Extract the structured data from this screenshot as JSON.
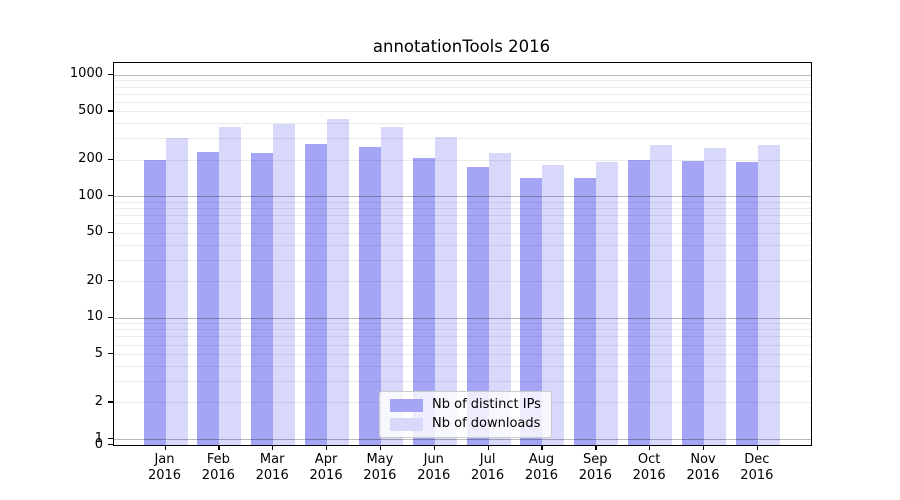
{
  "chart_data": {
    "type": "bar",
    "title": "annotationTools 2016",
    "categories": [
      "Jan 2016",
      "Feb 2016",
      "Mar 2016",
      "Apr 2016",
      "May 2016",
      "Jun 2016",
      "Jul 2016",
      "Aug 2016",
      "Sep 2016",
      "Oct 2016",
      "Nov 2016",
      "Dec 2016"
    ],
    "series": [
      {
        "name": "Nb of distinct IPs",
        "color": "#a5a5f5",
        "values": [
          200,
          230,
          225,
          270,
          255,
          205,
          175,
          140,
          140,
          200,
          195,
          190
        ]
      },
      {
        "name": "Nb of downloads",
        "color": "#d8d8fa",
        "values": [
          300,
          370,
          395,
          430,
          370,
          305,
          225,
          180,
          190,
          265,
          250,
          265
        ]
      }
    ],
    "xlabel": "",
    "ylabel": "",
    "yscale": "symlog",
    "yticks": [
      0,
      1,
      2,
      5,
      10,
      20,
      50,
      100,
      200,
      500,
      1000
    ],
    "ylim": [
      0,
      1250
    ],
    "grid": "horizontal-major-minor",
    "legend_position": "lower-center-inside"
  }
}
